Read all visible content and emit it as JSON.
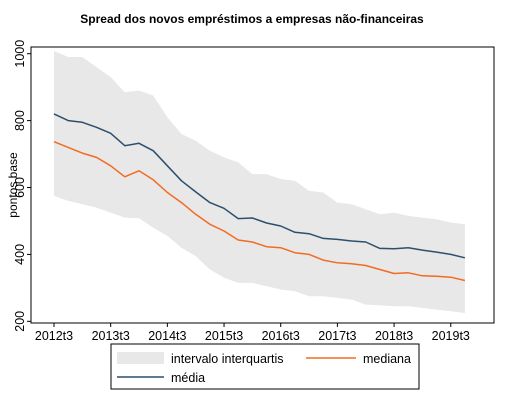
{
  "chart_data": {
    "type": "area",
    "title": "Spread dos novos empréstimos a empresas não-financeiras",
    "xlabel": "",
    "ylabel": "pontos base",
    "x_ticks": [
      "2012t3",
      "2013t3",
      "2014t3",
      "2015t3",
      "2016t3",
      "2017t3",
      "2018t3",
      "2019t3"
    ],
    "x": [
      "2012t3",
      "2012t4",
      "2013t1",
      "2013t2",
      "2013t3",
      "2013t4",
      "2014t1",
      "2014t2",
      "2014t3",
      "2014t4",
      "2015t1",
      "2015t2",
      "2015t3",
      "2015t4",
      "2016t1",
      "2016t2",
      "2016t3",
      "2016t4",
      "2017t1",
      "2017t2",
      "2017t3",
      "2017t4",
      "2018t1",
      "2018t2",
      "2018t3",
      "2018t4",
      "2019t1",
      "2019t2",
      "2019t3",
      "2019t4"
    ],
    "y_ticks": [
      200,
      400,
      600,
      800,
      1000
    ],
    "ylim": [
      195,
      1020
    ],
    "grid": false,
    "legend_position": "bottom",
    "legend_box": true,
    "series": [
      {
        "name": "intervalo interquartis",
        "kind": "band",
        "color": "#e8e8e8",
        "upper": [
          1008,
          990,
          990,
          960,
          930,
          885,
          890,
          875,
          810,
          760,
          740,
          710,
          690,
          675,
          640,
          640,
          625,
          620,
          590,
          585,
          555,
          550,
          535,
          520,
          525,
          515,
          510,
          505,
          495,
          490
        ],
        "lower": [
          575,
          560,
          550,
          540,
          525,
          510,
          508,
          480,
          455,
          420,
          395,
          355,
          330,
          315,
          315,
          305,
          295,
          290,
          275,
          275,
          270,
          265,
          250,
          248,
          245,
          245,
          240,
          235,
          230,
          225
        ]
      },
      {
        "name": "mediana",
        "kind": "line",
        "color": "#f26b21",
        "values": [
          737,
          720,
          703,
          690,
          665,
          632,
          650,
          623,
          585,
          555,
          520,
          490,
          470,
          443,
          437,
          423,
          420,
          405,
          400,
          383,
          375,
          372,
          367,
          355,
          343,
          345,
          336,
          335,
          332,
          322
        ]
      },
      {
        "name": "média",
        "kind": "line",
        "color": "#2c4f6e",
        "values": [
          820,
          800,
          795,
          780,
          762,
          725,
          732,
          710,
          665,
          620,
          587,
          555,
          538,
          507,
          509,
          494,
          485,
          466,
          462,
          448,
          445,
          440,
          437,
          418,
          417,
          420,
          413,
          407,
          400,
          390
        ]
      }
    ]
  }
}
